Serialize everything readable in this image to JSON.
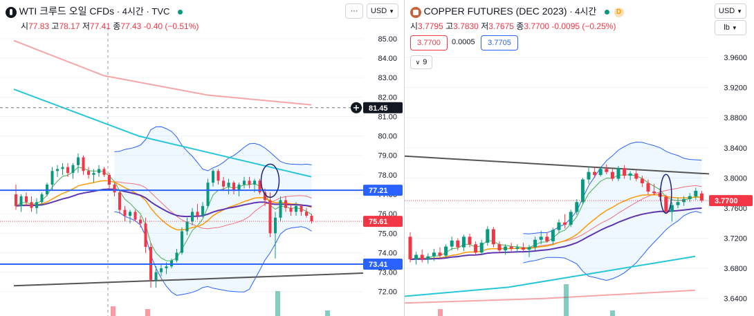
{
  "charts": [
    {
      "id": "left",
      "symbol_main": "WTI 크루드 오일 CFDs",
      "symbol_sub": "· 4시간 · TVC",
      "ohlc": {
        "o_label": "시",
        "o": "77.83",
        "h_label": "고",
        "h": "78.17",
        "l_label": "저",
        "l": "77.41",
        "c_label": "종",
        "c": "77.43",
        "chg": "-0.40 (−0.51%)"
      },
      "currency_label": "USD",
      "more_label": "···",
      "axis_ticks": [
        "85.00",
        "84.00",
        "83.00",
        "82.00",
        "81.00",
        "80.00",
        "79.00",
        "78.00",
        "77.00",
        "76.00",
        "75.00",
        "74.00",
        "73.00",
        "72.00"
      ],
      "price_labels": [
        {
          "text": "81.45",
          "kind": "crosshair"
        },
        {
          "text": "77.21",
          "kind": "line-blue"
        },
        {
          "text": "75.61",
          "kind": "last-red"
        },
        {
          "text": "73.41",
          "kind": "line-blue"
        }
      ],
      "colors": {
        "up": "#089981",
        "down": "#f23645",
        "hline": "#2962ff",
        "trend": "#555555"
      }
    },
    {
      "id": "right",
      "symbol_main": "COPPER FUTURES (DEC 2023)",
      "symbol_sub": "· 4시간",
      "badge": "D",
      "ohlc": {
        "o_label": "시",
        "o": "3.7795",
        "h_label": "고",
        "h": "3.7830",
        "l_label": "저",
        "l": "3.7675",
        "c_label": "종",
        "c": "3.7700",
        "chg": "-0.0095 (−0.25%)"
      },
      "bid": "3.7700",
      "spread": "0.0005",
      "ask": "3.7705",
      "indicators_toggle": "9",
      "currency_label": "USD",
      "unit_label": "lb",
      "axis_ticks": [
        "3.9600",
        "3.9200",
        "3.8800",
        "3.8400",
        "3.8000",
        "3.7600",
        "3.7200",
        "3.6800",
        "3.6400"
      ],
      "price_labels": [
        {
          "text": "3.7700",
          "kind": "last-red"
        }
      ],
      "colors": {
        "up": "#089981",
        "down": "#f23645",
        "trend": "#555555"
      }
    }
  ],
  "chart_data": [
    {
      "type": "candlestick",
      "title": "WTI 크루드 오일 CFDs · 4시간 · TVC",
      "ylim": [
        71.6,
        85.6
      ],
      "horizontal_lines": [
        77.21,
        73.41
      ],
      "last_price": 75.61,
      "candles": [
        [
          77.0,
          77.5,
          76.2,
          76.4
        ],
        [
          76.4,
          77.0,
          76.1,
          76.9
        ],
        [
          76.9,
          77.1,
          76.4,
          76.6
        ],
        [
          76.6,
          76.9,
          76.1,
          76.3
        ],
        [
          76.3,
          76.8,
          76.0,
          76.6
        ],
        [
          76.6,
          77.1,
          76.4,
          77.0
        ],
        [
          77.0,
          77.6,
          76.9,
          77.5
        ],
        [
          77.5,
          78.4,
          77.2,
          78.2
        ],
        [
          78.2,
          78.5,
          77.9,
          78.3
        ],
        [
          78.3,
          78.6,
          78.0,
          78.4
        ],
        [
          78.4,
          78.6,
          77.9,
          78.1
        ],
        [
          78.1,
          78.6,
          77.8,
          78.5
        ],
        [
          78.5,
          79.1,
          78.1,
          78.9
        ],
        [
          78.9,
          79.0,
          78.0,
          78.2
        ],
        [
          78.2,
          78.4,
          77.8,
          78.0
        ],
        [
          78.0,
          78.3,
          77.6,
          78.1
        ],
        [
          78.1,
          78.5,
          77.9,
          78.3
        ],
        [
          78.3,
          78.4,
          77.9,
          78.0
        ],
        [
          78.0,
          78.1,
          77.3,
          77.5
        ],
        [
          77.5,
          77.6,
          76.9,
          77.1
        ],
        [
          77.1,
          77.2,
          76.0,
          76.2
        ],
        [
          76.2,
          76.4,
          75.6,
          75.9
        ],
        [
          75.9,
          76.2,
          75.5,
          76.1
        ],
        [
          76.1,
          76.2,
          75.6,
          75.7
        ],
        [
          75.7,
          75.9,
          75.3,
          75.5
        ],
        [
          75.5,
          75.8,
          74.0,
          74.3
        ],
        [
          74.3,
          74.5,
          72.2,
          72.6
        ],
        [
          72.6,
          73.3,
          72.2,
          73.0
        ],
        [
          73.0,
          73.4,
          72.8,
          73.2
        ],
        [
          73.2,
          73.5,
          72.9,
          73.3
        ],
        [
          73.3,
          73.7,
          73.2,
          73.6
        ],
        [
          73.6,
          74.2,
          73.5,
          74.0
        ],
        [
          74.0,
          75.3,
          73.9,
          75.1
        ],
        [
          75.1,
          75.8,
          74.9,
          75.6
        ],
        [
          75.6,
          76.3,
          75.4,
          76.1
        ],
        [
          76.1,
          76.5,
          75.7,
          75.9
        ],
        [
          75.9,
          76.6,
          75.8,
          76.4
        ],
        [
          76.4,
          77.8,
          76.3,
          77.6
        ],
        [
          77.6,
          78.3,
          77.4,
          78.2
        ],
        [
          78.2,
          78.3,
          77.5,
          77.7
        ],
        [
          77.7,
          77.9,
          77.2,
          77.4
        ],
        [
          77.4,
          77.8,
          77.0,
          77.6
        ],
        [
          77.6,
          77.7,
          77.0,
          77.2
        ],
        [
          77.2,
          77.6,
          76.9,
          77.5
        ],
        [
          77.5,
          77.9,
          77.3,
          77.7
        ],
        [
          77.7,
          77.9,
          77.3,
          77.5
        ],
        [
          77.5,
          77.8,
          77.1,
          77.7
        ],
        [
          77.7,
          77.8,
          77.0,
          77.1
        ],
        [
          77.1,
          77.3,
          76.4,
          76.7
        ],
        [
          76.7,
          77.1,
          74.8,
          75.0
        ],
        [
          75.0,
          76.1,
          73.7,
          75.8
        ],
        [
          75.8,
          76.9,
          75.6,
          76.7
        ],
        [
          76.7,
          76.9,
          76.1,
          76.3
        ],
        [
          76.3,
          76.5,
          75.9,
          76.1
        ],
        [
          76.1,
          76.6,
          75.9,
          76.4
        ],
        [
          76.4,
          76.5,
          75.9,
          76.1
        ],
        [
          76.1,
          76.3,
          75.8,
          75.9
        ],
        [
          75.9,
          76.0,
          75.5,
          75.61
        ]
      ]
    },
    {
      "type": "candlestick",
      "title": "COPPER FUTURES (DEC 2023) · 4시간",
      "ylim": [
        3.6315,
        3.9775
      ],
      "last_price": 3.77,
      "candles": [
        [
          3.722,
          3.728,
          3.688,
          3.692
        ],
        [
          3.692,
          3.702,
          3.685,
          3.698
        ],
        [
          3.698,
          3.705,
          3.688,
          3.692
        ],
        [
          3.692,
          3.7,
          3.686,
          3.696
        ],
        [
          3.696,
          3.706,
          3.69,
          3.701
        ],
        [
          3.701,
          3.708,
          3.693,
          3.697
        ],
        [
          3.697,
          3.712,
          3.694,
          3.709
        ],
        [
          3.709,
          3.722,
          3.704,
          3.717
        ],
        [
          3.717,
          3.72,
          3.704,
          3.708
        ],
        [
          3.708,
          3.725,
          3.703,
          3.722
        ],
        [
          3.722,
          3.726,
          3.708,
          3.712
        ],
        [
          3.712,
          3.716,
          3.697,
          3.701
        ],
        [
          3.701,
          3.718,
          3.698,
          3.714
        ],
        [
          3.714,
          3.736,
          3.71,
          3.732
        ],
        [
          3.732,
          3.735,
          3.708,
          3.712
        ],
        [
          3.712,
          3.716,
          3.7,
          3.704
        ],
        [
          3.704,
          3.712,
          3.698,
          3.709
        ],
        [
          3.709,
          3.714,
          3.703,
          3.706
        ],
        [
          3.706,
          3.712,
          3.701,
          3.708
        ],
        [
          3.708,
          3.714,
          3.703,
          3.705
        ],
        [
          3.705,
          3.711,
          3.695,
          3.708
        ],
        [
          3.708,
          3.722,
          3.704,
          3.718
        ],
        [
          3.718,
          3.73,
          3.712,
          3.722
        ],
        [
          3.722,
          3.728,
          3.714,
          3.716
        ],
        [
          3.716,
          3.734,
          3.712,
          3.731
        ],
        [
          3.731,
          3.745,
          3.727,
          3.741
        ],
        [
          3.741,
          3.752,
          3.733,
          3.738
        ],
        [
          3.738,
          3.758,
          3.735,
          3.755
        ],
        [
          3.755,
          3.772,
          3.751,
          3.768
        ],
        [
          3.768,
          3.8,
          3.765,
          3.798
        ],
        [
          3.798,
          3.815,
          3.792,
          3.808
        ],
        [
          3.808,
          3.814,
          3.8,
          3.804
        ],
        [
          3.804,
          3.815,
          3.802,
          3.812
        ],
        [
          3.812,
          3.818,
          3.805,
          3.808
        ],
        [
          3.808,
          3.813,
          3.796,
          3.799
        ],
        [
          3.799,
          3.816,
          3.796,
          3.813
        ],
        [
          3.813,
          3.817,
          3.799,
          3.803
        ],
        [
          3.803,
          3.809,
          3.797,
          3.806
        ],
        [
          3.806,
          3.81,
          3.796,
          3.799
        ],
        [
          3.799,
          3.803,
          3.788,
          3.793
        ],
        [
          3.793,
          3.798,
          3.778,
          3.782
        ],
        [
          3.782,
          3.792,
          3.777,
          3.78
        ],
        [
          3.78,
          3.786,
          3.77,
          3.775
        ],
        [
          3.775,
          3.778,
          3.752,
          3.755
        ],
        [
          3.755,
          3.768,
          3.742,
          3.764
        ],
        [
          3.764,
          3.774,
          3.76,
          3.768
        ],
        [
          3.768,
          3.776,
          3.763,
          3.772
        ],
        [
          3.772,
          3.78,
          3.768,
          3.776
        ],
        [
          3.776,
          3.787,
          3.771,
          3.783
        ],
        [
          3.7795,
          3.783,
          3.7675,
          3.77
        ]
      ]
    }
  ]
}
